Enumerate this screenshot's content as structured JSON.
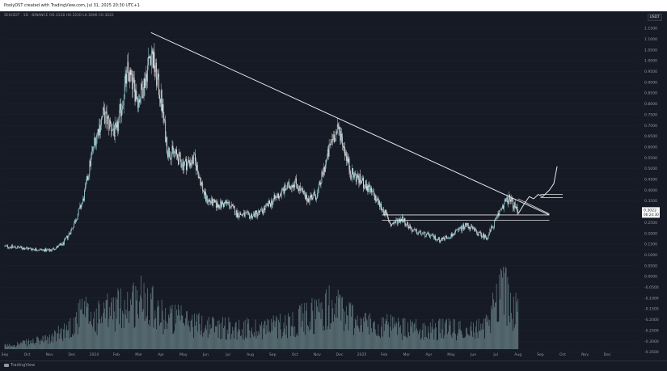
{
  "header": {
    "text": "PoolyDST created with TradingView.com, Jul 31, 2025 20:30 UTC+1"
  },
  "symbol_line": "SEIUSDT · 1D · BINANCE  O0.3128  H0.3220  L0.3006  C0.3022",
  "currency_badge": "USDT",
  "footer": {
    "logo_text": "TradingView"
  },
  "colors": {
    "background": "#161a25",
    "candle_up": "#a8e0e5",
    "candle_down": "#ffffff",
    "volume": "#6f8a8e",
    "trendline": "#e6e6e6",
    "price_tag_bg": "#ffffff",
    "grid": "#1f2330"
  },
  "chart_data": {
    "type": "candlestick",
    "x_ticks": [
      "Sep",
      "Oct",
      "Nov",
      "Dec",
      "2024",
      "Feb",
      "Mar",
      "Apr",
      "May",
      "Jun",
      "Jul",
      "Aug",
      "Sep",
      "Oct",
      "Nov",
      "Dec",
      "2025",
      "Feb",
      "Mar",
      "Apr",
      "May",
      "Jun",
      "Jul",
      "Aug",
      "Sep",
      "Oct",
      "Nov",
      "Dec"
    ],
    "y_ticks": [
      "1.1500",
      "1.1000",
      "1.0500",
      "1.0000",
      "0.9500",
      "0.9000",
      "0.8500",
      "0.8000",
      "0.7500",
      "0.7000",
      "0.6500",
      "0.6000",
      "0.5500",
      "0.5000",
      "0.4500",
      "0.4000",
      "0.3500",
      "0.3000",
      "0.2500",
      "0.2000",
      "0.1500",
      "0.1000",
      "0.0500",
      "0.0000",
      "-0.0500",
      "-0.1000",
      "-0.1500",
      "-0.2000",
      "-0.2500",
      "-0.3000",
      "-0.3500"
    ],
    "price_label": "0.3022",
    "price_sub_label": "06:24:30",
    "price_anchors": [
      {
        "month": 0.0,
        "price": 0.14
      },
      {
        "month": 1.0,
        "price": 0.13
      },
      {
        "month": 2.0,
        "price": 0.12
      },
      {
        "month": 2.6,
        "price": 0.15
      },
      {
        "month": 3.0,
        "price": 0.22
      },
      {
        "month": 3.5,
        "price": 0.35
      },
      {
        "month": 4.0,
        "price": 0.62
      },
      {
        "month": 4.4,
        "price": 0.75
      },
      {
        "month": 5.0,
        "price": 0.66
      },
      {
        "month": 5.5,
        "price": 0.95
      },
      {
        "month": 6.0,
        "price": 0.82
      },
      {
        "month": 6.3,
        "price": 0.92
      },
      {
        "month": 6.55,
        "price": 1.05
      },
      {
        "month": 7.0,
        "price": 0.82
      },
      {
        "month": 7.3,
        "price": 0.58
      },
      {
        "month": 7.6,
        "price": 0.57
      },
      {
        "month": 8.0,
        "price": 0.52
      },
      {
        "month": 8.5,
        "price": 0.54
      },
      {
        "month": 9.0,
        "price": 0.36
      },
      {
        "month": 9.5,
        "price": 0.33
      },
      {
        "month": 10.0,
        "price": 0.34
      },
      {
        "month": 10.4,
        "price": 0.29
      },
      {
        "month": 11.0,
        "price": 0.28
      },
      {
        "month": 11.5,
        "price": 0.3
      },
      {
        "month": 12.0,
        "price": 0.35
      },
      {
        "month": 12.5,
        "price": 0.4
      },
      {
        "month": 13.0,
        "price": 0.44
      },
      {
        "month": 13.5,
        "price": 0.36
      },
      {
        "month": 14.0,
        "price": 0.38
      },
      {
        "month": 14.7,
        "price": 0.65
      },
      {
        "month": 15.0,
        "price": 0.68
      },
      {
        "month": 15.5,
        "price": 0.48
      },
      {
        "month": 16.0,
        "price": 0.44
      },
      {
        "month": 16.5,
        "price": 0.38
      },
      {
        "month": 17.0,
        "price": 0.3
      },
      {
        "month": 17.3,
        "price": 0.24
      },
      {
        "month": 17.8,
        "price": 0.27
      },
      {
        "month": 18.3,
        "price": 0.21
      },
      {
        "month": 19.0,
        "price": 0.19
      },
      {
        "month": 19.5,
        "price": 0.17
      },
      {
        "month": 20.0,
        "price": 0.19
      },
      {
        "month": 20.7,
        "price": 0.24
      },
      {
        "month": 21.2,
        "price": 0.2
      },
      {
        "month": 21.6,
        "price": 0.18
      },
      {
        "month": 22.0,
        "price": 0.26
      },
      {
        "month": 22.3,
        "price": 0.33
      },
      {
        "month": 22.6,
        "price": 0.36
      },
      {
        "month": 23.0,
        "price": 0.3
      }
    ],
    "projection_path": [
      {
        "month": 23.0,
        "price": 0.29
      },
      {
        "month": 23.3,
        "price": 0.34
      },
      {
        "month": 23.5,
        "price": 0.37
      },
      {
        "month": 23.7,
        "price": 0.36
      },
      {
        "month": 23.9,
        "price": 0.38
      },
      {
        "month": 24.1,
        "price": 0.37
      },
      {
        "month": 24.4,
        "price": 0.4
      },
      {
        "month": 24.6,
        "price": 0.43
      },
      {
        "month": 24.75,
        "price": 0.51
      }
    ],
    "trendline": [
      {
        "month": 6.55,
        "price": 1.13
      },
      {
        "month": 24.4,
        "price": 0.285
      }
    ],
    "lower_trendline": [
      {
        "month": 23.0,
        "price": 0.36
      },
      {
        "month": 24.4,
        "price": 0.29
      }
    ],
    "horizontal_lines": [
      {
        "from_month": 24.0,
        "to_month": 25.0,
        "price": 0.38
      },
      {
        "from_month": 24.0,
        "to_month": 25.0,
        "price": 0.365
      },
      {
        "from_month": 16.9,
        "to_month": 24.4,
        "price": 0.285
      },
      {
        "from_month": 16.9,
        "to_month": 24.4,
        "price": 0.26
      }
    ],
    "volume_profile": [
      {
        "month": 0.0,
        "level": 0.05
      },
      {
        "month": 2.0,
        "level": 0.15
      },
      {
        "month": 3.0,
        "level": 0.35
      },
      {
        "month": 3.5,
        "level": 0.55
      },
      {
        "month": 4.0,
        "level": 0.45
      },
      {
        "month": 5.0,
        "level": 0.6
      },
      {
        "month": 6.5,
        "level": 0.8
      },
      {
        "month": 7.0,
        "level": 0.5
      },
      {
        "month": 9.0,
        "level": 0.35
      },
      {
        "month": 11.0,
        "level": 0.3
      },
      {
        "month": 13.0,
        "level": 0.4
      },
      {
        "month": 14.7,
        "level": 0.65
      },
      {
        "month": 16.0,
        "level": 0.4
      },
      {
        "month": 18.0,
        "level": 0.3
      },
      {
        "month": 20.0,
        "level": 0.3
      },
      {
        "month": 21.5,
        "level": 0.3
      },
      {
        "month": 22.3,
        "level": 1.0
      },
      {
        "month": 22.6,
        "level": 0.7
      },
      {
        "month": 23.0,
        "level": 0.5
      }
    ],
    "xlabel": "",
    "ylabel": ""
  }
}
